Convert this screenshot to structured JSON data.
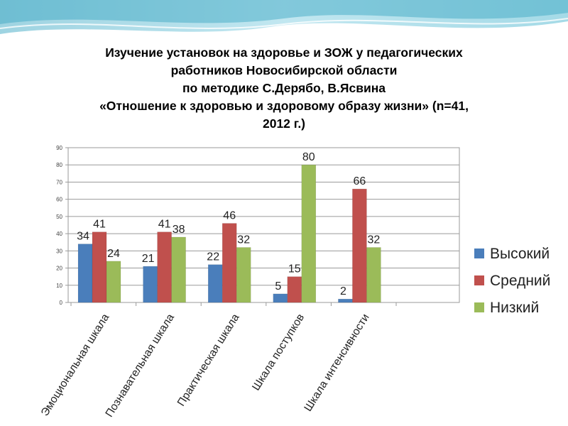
{
  "title_lines": [
    "Изучение установок на здоровье и ЗОЖ у педагогических",
    "работников Новосибирской области",
    "по методике С.Дерябо, В.Ясвина",
    "«Отношение к здоровью и здоровому образу жизни»    (n=41,",
    "2012 г.)"
  ],
  "colors": {
    "Высокий": "#4a7ebb",
    "Средний": "#c0504d",
    "Низкий": "#9bbb59"
  },
  "chart_data": {
    "type": "bar",
    "title": "Изучение установок на здоровье и ЗОЖ у педагогических работников Новосибирской области по методике С.Дерябо, В.Ясвина «Отношение к здоровью и здоровому образу жизни» (n=41, 2012 г.)",
    "categories": [
      "Эмоциональная шкала",
      "Познавательная шкала",
      "Практическая шкала",
      "Шкала поступков",
      "Шкала интенсивности"
    ],
    "series": [
      {
        "name": "Высокий",
        "values": [
          34,
          21,
          22,
          5,
          2
        ]
      },
      {
        "name": "Средний",
        "values": [
          41,
          41,
          46,
          15,
          66
        ]
      },
      {
        "name": "Низкий",
        "values": [
          24,
          38,
          32,
          80,
          32
        ]
      }
    ],
    "ylim": [
      0,
      90
    ],
    "yticks": [
      0,
      10,
      20,
      30,
      40,
      50,
      60,
      70,
      80,
      90
    ],
    "xlabel": "",
    "ylabel": "",
    "grid": true,
    "legend": "right"
  }
}
